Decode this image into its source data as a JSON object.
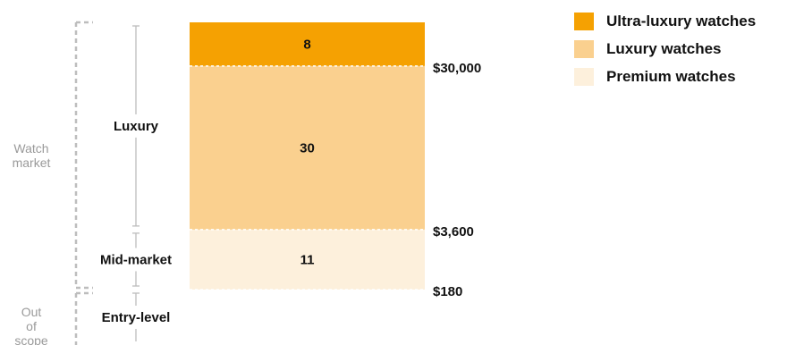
{
  "chart_data": {
    "type": "bar",
    "stacked": true,
    "series": [
      {
        "name": "Premium watches",
        "value": 11,
        "color": "#FDF0DC"
      },
      {
        "name": "Luxury watches",
        "value": 30,
        "color": "#FAD08F"
      },
      {
        "name": "Ultra-luxury watches",
        "value": 8,
        "color": "#F5A102"
      }
    ],
    "price_thresholds": [
      "$180",
      "$3,600",
      "$30,000"
    ],
    "segment_labels": [
      "Entry-level",
      "Mid-market",
      "Luxury"
    ],
    "group_labels": [
      {
        "label": "Out of scope"
      },
      {
        "label": "Watch market"
      }
    ],
    "legend": {
      "placement": "top-right",
      "items": [
        {
          "label": "Ultra-luxury watches",
          "color": "#F5A102"
        },
        {
          "label": "Luxury watches",
          "color": "#FAD08F"
        },
        {
          "label": "Premium watches",
          "color": "#FDF0DC"
        }
      ]
    }
  }
}
